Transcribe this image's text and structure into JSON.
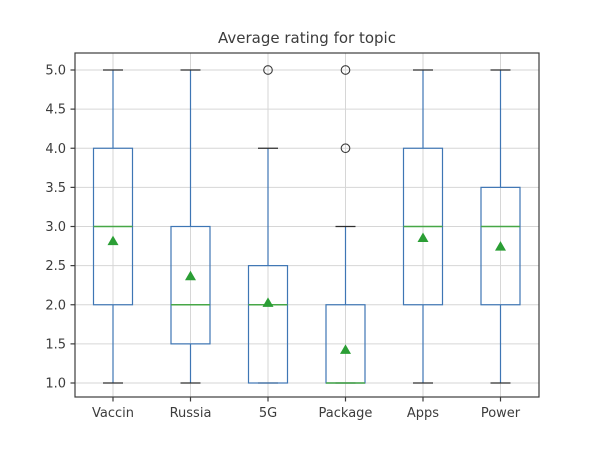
{
  "chart_data": {
    "type": "boxplot",
    "title": "Average rating for topic",
    "categories": [
      "Vaccin",
      "Russia",
      "5G",
      "Package",
      "Apps",
      "Power"
    ],
    "xlabel": "",
    "ylabel": "",
    "ylim": [
      0.8,
      5.2
    ],
    "yticks": [
      1.0,
      1.5,
      2.0,
      2.5,
      3.0,
      3.5,
      4.0,
      4.5,
      5.0
    ],
    "grid": true,
    "legend_position": "none",
    "show_means": true,
    "series": [
      {
        "name": "Vaccin",
        "whisker_low": 1.0,
        "q1": 2.0,
        "median": 3.0,
        "q3": 4.0,
        "whisker_high": 5.0,
        "mean": 2.82,
        "outliers": []
      },
      {
        "name": "Russia",
        "whisker_low": 1.0,
        "q1": 1.5,
        "median": 2.0,
        "q3": 3.0,
        "whisker_high": 5.0,
        "mean": 2.37,
        "outliers": []
      },
      {
        "name": "5G",
        "whisker_low": 1.0,
        "q1": 1.0,
        "median": 2.0,
        "q3": 2.5,
        "whisker_high": 4.0,
        "mean": 2.03,
        "outliers": [
          5.0
        ]
      },
      {
        "name": "Package",
        "whisker_low": 1.0,
        "q1": 1.0,
        "median": 1.0,
        "q3": 2.0,
        "whisker_high": 3.0,
        "mean": 1.43,
        "outliers": [
          4.0,
          5.0
        ]
      },
      {
        "name": "Apps",
        "whisker_low": 1.0,
        "q1": 2.0,
        "median": 3.0,
        "q3": 4.0,
        "whisker_high": 5.0,
        "mean": 2.86,
        "outliers": []
      },
      {
        "name": "Power",
        "whisker_low": 1.0,
        "q1": 2.0,
        "median": 3.0,
        "q3": 3.5,
        "whisker_high": 5.0,
        "mean": 2.75,
        "outliers": []
      }
    ],
    "colors": {
      "box": "#3e76b4",
      "whisker": "#3e76b4",
      "median": "#47a747",
      "mean_marker": "#2b9e35",
      "cap": "#2f2f2f",
      "outlier": "#3a3a3a",
      "grid": "#d6d6d6",
      "spine": "#3c3c3c",
      "text": "#3c3c3c",
      "background": "#ffffff"
    }
  }
}
